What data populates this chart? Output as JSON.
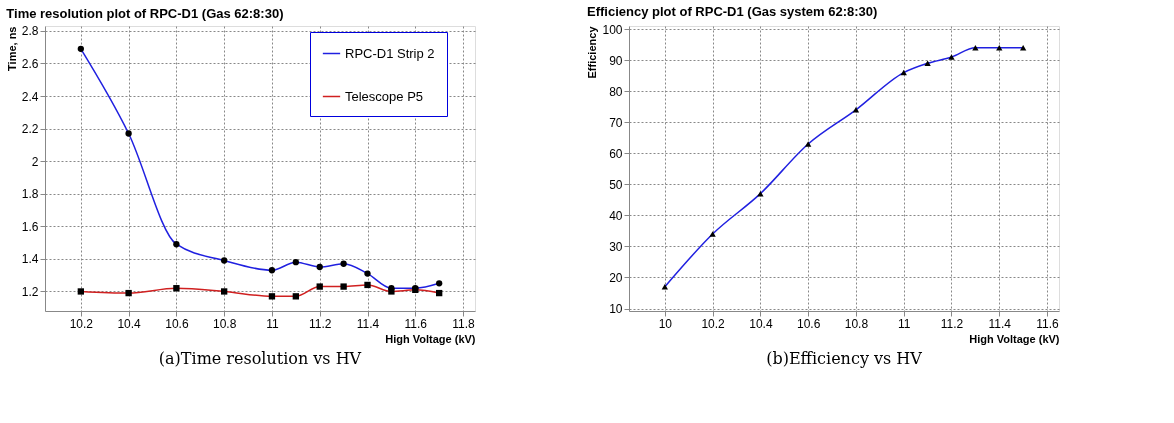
{
  "chart_data": [
    {
      "type": "line",
      "title": "Time resolution plot of RPC-D1 (Gas 62:8:30)",
      "xlabel": "High Voltage (kV)",
      "ylabel": "Time, ns",
      "x": [
        10.2,
        10.4,
        10.6,
        10.8,
        11.0,
        11.1,
        11.2,
        11.3,
        11.4,
        11.5,
        11.6,
        11.7
      ],
      "series": [
        {
          "name": "RPC-D1 Strip 2",
          "color": "#2020e0",
          "marker": "circle",
          "values": [
            2.69,
            2.17,
            1.49,
            1.39,
            1.33,
            1.38,
            1.35,
            1.37,
            1.31,
            1.22,
            1.22,
            1.25
          ]
        },
        {
          "name": "Telescope P5",
          "color": "#d02020",
          "marker": "square",
          "values": [
            1.2,
            1.19,
            1.22,
            1.2,
            1.17,
            1.17,
            1.23,
            1.23,
            1.24,
            1.2,
            1.21,
            1.19
          ]
        }
      ],
      "xlim": [
        10.05,
        11.85
      ],
      "xticks": [
        10.2,
        10.4,
        10.6,
        10.8,
        11,
        11.2,
        11.4,
        11.6,
        11.8
      ],
      "ylim": [
        1.08,
        2.83
      ],
      "yticks": [
        1.2,
        1.4,
        1.6,
        1.8,
        2,
        2.2,
        2.4,
        2.6,
        2.8
      ],
      "grid": true,
      "legend": "top right",
      "annotations": [
        "(a)Time resolution vs HV"
      ]
    },
    {
      "type": "line",
      "title": "Efficiency plot of RPC-D1 (Gas system 62:8:30)",
      "xlabel": "High Voltage (kV)",
      "ylabel": "Efficiency",
      "x": [
        10.0,
        10.2,
        10.4,
        10.6,
        10.8,
        11.0,
        11.1,
        11.2,
        11.3,
        11.4,
        11.5
      ],
      "series": [
        {
          "color": "#2020e0",
          "marker": "triangle",
          "values": [
            17,
            34,
            47,
            63,
            74,
            86,
            89,
            91,
            94,
            94,
            94
          ]
        }
      ],
      "xlim": [
        9.85,
        11.65
      ],
      "xticks": [
        10,
        10.2,
        10.4,
        10.6,
        10.8,
        11,
        11.2,
        11.4,
        11.6
      ],
      "ylim": [
        9.2,
        101
      ],
      "yticks": [
        10,
        20,
        30,
        40,
        50,
        60,
        70,
        80,
        90,
        100
      ],
      "grid": true,
      "annotations": [
        "(b)Efficiency vs HV"
      ]
    }
  ]
}
